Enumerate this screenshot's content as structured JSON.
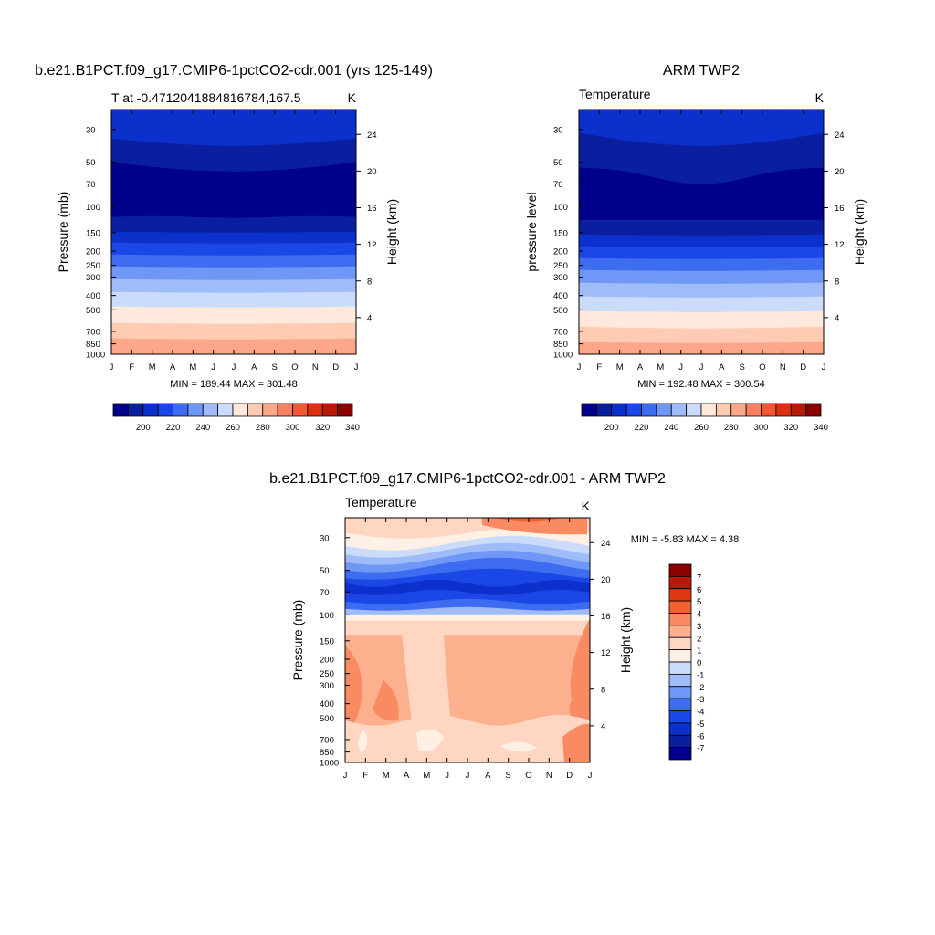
{
  "palette": {
    "temperature": [
      "#00008b",
      "#0a1fa0",
      "#0c30cc",
      "#1a47e5",
      "#3d6cf0",
      "#6e97f6",
      "#9fbcf8",
      "#cbdcfb",
      "#ffe8dc",
      "#ffcbb3",
      "#fca789",
      "#f9805f",
      "#f25730",
      "#dd3012",
      "#b81a0a",
      "#8b0000"
    ],
    "difference": [
      "#00008b",
      "#0a1fa0",
      "#0c30cc",
      "#1a47e5",
      "#3d6cf0",
      "#6e97f6",
      "#9fbcf8",
      "#cbdcfb",
      "#fff0e6",
      "#ffd6c2",
      "#fcb08e",
      "#f98a61",
      "#f2622f",
      "#dd3812",
      "#b81a0a",
      "#8b0000"
    ]
  },
  "panels": {
    "model": {
      "title": "b.e21.B1PCT.f09_g17.CMIP6-1pctCO2-cdr.001 (yrs 125-149)",
      "left_label": "T at -0.4712041884816784,167.5",
      "right_label": "K",
      "y_axis_label": "Pressure (mb)",
      "right_axis_label": "Height (km)",
      "minmax": "MIN = 189.44 MAX = 301.48"
    },
    "obs": {
      "title": "ARM TWP2",
      "left_label": "Temperature",
      "right_label": "K",
      "y_axis_label": "pressure level",
      "right_axis_label": "Height (km)",
      "minmax": "MIN = 192.48 MAX = 300.54"
    },
    "diff": {
      "title": "b.e21.B1PCT.f09_g17.CMIP6-1pctCO2-cdr.001 - ARM TWP2",
      "left_label": "Temperature",
      "right_label": "K",
      "y_axis_label": "Pressure (mb)",
      "right_axis_label": "Height (km)",
      "minmax": "MIN =  -5.83 MAX =   4.38"
    }
  },
  "chart_data": [
    {
      "type": "heatmap",
      "title": "b.e21.B1PCT.f09_g17.CMIP6-1pctCO2-cdr.001 (yrs 125-149)",
      "variable": "T at -0.4712041884816784,167.5",
      "units": "K",
      "x": [
        "J",
        "F",
        "M",
        "A",
        "M",
        "J",
        "J",
        "A",
        "S",
        "O",
        "N",
        "D",
        "J"
      ],
      "pressure_ticks": [
        "30",
        "50",
        "70",
        "100",
        "150",
        "200",
        "250",
        "300",
        "400",
        "500",
        "700",
        "850",
        "1000"
      ],
      "height_ticks": [
        "4",
        "8",
        "12",
        "16",
        "20",
        "24"
      ],
      "xlabel": "",
      "ylabel": "Pressure (mb)",
      "ylabel_right": "Height (km)",
      "ylim": [
        1000,
        22
      ],
      "colorbar_labels": [
        "200",
        "220",
        "240",
        "260",
        "280",
        "300",
        "320",
        "340"
      ],
      "min": 189.44,
      "max": 301.48
    },
    {
      "type": "heatmap",
      "title": "ARM TWP2",
      "variable": "Temperature",
      "units": "K",
      "x": [
        "J",
        "F",
        "M",
        "A",
        "M",
        "J",
        "J",
        "A",
        "S",
        "O",
        "N",
        "D",
        "J"
      ],
      "pressure_ticks": [
        "30",
        "50",
        "70",
        "100",
        "150",
        "200",
        "250",
        "300",
        "400",
        "500",
        "700",
        "850",
        "1000"
      ],
      "height_ticks": [
        "4",
        "8",
        "12",
        "16",
        "20",
        "24"
      ],
      "xlabel": "",
      "ylabel": "pressure level",
      "ylabel_right": "Height (km)",
      "ylim": [
        1000,
        22
      ],
      "colorbar_labels": [
        "200",
        "220",
        "240",
        "260",
        "280",
        "300",
        "320",
        "340"
      ],
      "min": 192.48,
      "max": 300.54
    },
    {
      "type": "heatmap",
      "title": "b.e21.B1PCT.f09_g17.CMIP6-1pctCO2-cdr.001 - ARM TWP2",
      "variable": "Temperature",
      "units": "K",
      "x": [
        "J",
        "F",
        "M",
        "A",
        "M",
        "J",
        "J",
        "A",
        "S",
        "O",
        "N",
        "D",
        "J"
      ],
      "pressure_ticks": [
        "30",
        "50",
        "70",
        "100",
        "150",
        "200",
        "250",
        "300",
        "400",
        "500",
        "700",
        "850",
        "1000"
      ],
      "height_ticks": [
        "4",
        "8",
        "12",
        "16",
        "20",
        "24"
      ],
      "xlabel": "",
      "ylabel": "Pressure (mb)",
      "ylabel_right": "Height (km)",
      "ylim": [
        1000,
        22
      ],
      "colorbar_labels": [
        "7",
        "6",
        "5",
        "4",
        "3",
        "2",
        "1",
        "0",
        "-1",
        "-2",
        "-3",
        "-4",
        "-5",
        "-6",
        "-7"
      ],
      "min": -5.83,
      "max": 4.38
    }
  ]
}
